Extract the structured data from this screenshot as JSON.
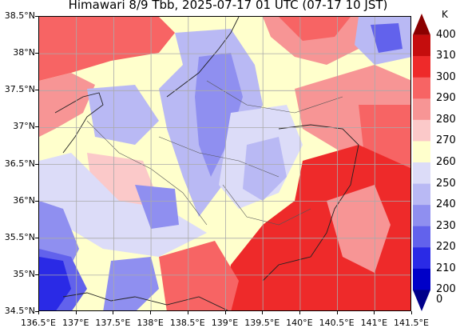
{
  "title": "Himawari 8/9 Tbb, 2025-07-17 01 UTC (07-17 10 JST)",
  "map": {
    "lon_ticks": [
      "136.5°E",
      "137°E",
      "137.5°E",
      "138°E",
      "138.5°E",
      "139°E",
      "139.5°E",
      "140°E",
      "140.5°E",
      "141°E",
      "141.5°E"
    ],
    "lat_ticks": [
      "38.5°N",
      "38°N",
      "37.5°N",
      "37°N",
      "36.5°N",
      "36°N",
      "35.5°N",
      "35°N",
      "34.5°N"
    ],
    "extent": {
      "lon_min": 136.5,
      "lon_max": 141.5,
      "lat_min": 34.5,
      "lat_max": 38.5
    },
    "gridlines": true,
    "icons": [
      "coastline",
      "prefecture-boundaries"
    ]
  },
  "colorbar": {
    "unit": "K",
    "levels": [
      "400",
      "310",
      "300",
      "290",
      "280",
      "270",
      "260",
      "250",
      "240",
      "230",
      "220",
      "210",
      "200",
      "0"
    ],
    "colors": [
      "#8b0000",
      "#c50d0d",
      "#ee2a2a",
      "#f76464",
      "#f79595",
      "#fbc9c9",
      "#ffffcc",
      "#dcdcf8",
      "#b9b9f4",
      "#8f8ff0",
      "#6262ec",
      "#2a2ae6",
      "#0000c8",
      "#00008b"
    ],
    "extend": "both"
  }
}
